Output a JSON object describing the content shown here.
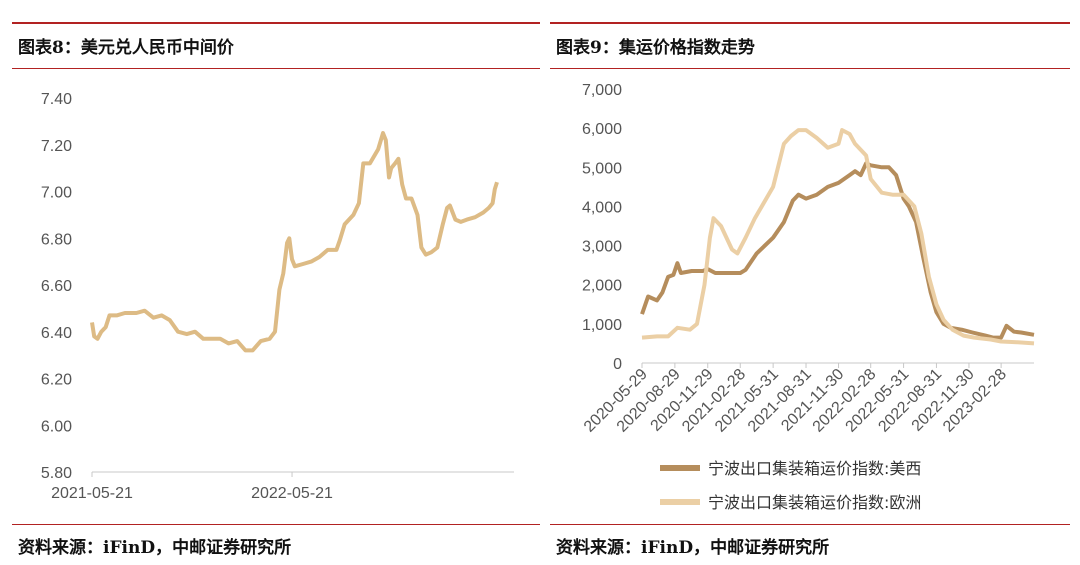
{
  "left": {
    "title": "图表8：美元兑人民币中间价",
    "source": "资料来源：iFinD，中邮证券研究所"
  },
  "right": {
    "title": "图表9：集运价格指数走势",
    "source": "资料来源：iFinD，中邮证券研究所"
  },
  "colors": {
    "usd_cny": "#ddbb85",
    "us_west": "#b58d5c",
    "europe": "#ebcfa5",
    "rule": "#b22222"
  },
  "chart_data": [
    {
      "type": "line",
      "title": "",
      "xlabel": "",
      "ylabel": "",
      "ylim": [
        5.8,
        7.4
      ],
      "yticks": [
        "7.40",
        "7.20",
        "7.00",
        "6.80",
        "6.60",
        "6.40",
        "6.20",
        "6.00",
        "5.80"
      ],
      "xticks": [
        "2021-05-21",
        "2022-05-21"
      ],
      "xlim": [
        "2021-05-21",
        "2023-06-30"
      ],
      "grid": false,
      "series": [
        {
          "values_by_date": [
            [
              "2021-05-21",
              6.44
            ],
            [
              "2021-05-25",
              6.38
            ],
            [
              "2021-05-31",
              6.37
            ],
            [
              "2021-06-07",
              6.4
            ],
            [
              "2021-06-15",
              6.42
            ],
            [
              "2021-06-22",
              6.47
            ],
            [
              "2021-07-05",
              6.47
            ],
            [
              "2021-07-20",
              6.48
            ],
            [
              "2021-08-10",
              6.48
            ],
            [
              "2021-08-25",
              6.49
            ],
            [
              "2021-09-10",
              6.46
            ],
            [
              "2021-09-25",
              6.47
            ],
            [
              "2021-10-10",
              6.45
            ],
            [
              "2021-10-25",
              6.4
            ],
            [
              "2021-11-10",
              6.39
            ],
            [
              "2021-11-25",
              6.4
            ],
            [
              "2021-12-10",
              6.37
            ],
            [
              "2021-12-25",
              6.37
            ],
            [
              "2022-01-10",
              6.37
            ],
            [
              "2022-01-25",
              6.35
            ],
            [
              "2022-02-10",
              6.36
            ],
            [
              "2022-02-25",
              6.32
            ],
            [
              "2022-03-10",
              6.32
            ],
            [
              "2022-03-25",
              6.36
            ],
            [
              "2022-04-10",
              6.37
            ],
            [
              "2022-04-20",
              6.4
            ],
            [
              "2022-04-28",
              6.58
            ],
            [
              "2022-05-05",
              6.65
            ],
            [
              "2022-05-12",
              6.78
            ],
            [
              "2022-05-16",
              6.8
            ],
            [
              "2022-05-21",
              6.71
            ],
            [
              "2022-05-26",
              6.68
            ],
            [
              "2022-06-10",
              6.69
            ],
            [
              "2022-06-25",
              6.7
            ],
            [
              "2022-07-10",
              6.72
            ],
            [
              "2022-07-25",
              6.75
            ],
            [
              "2022-08-10",
              6.75
            ],
            [
              "2022-08-16",
              6.79
            ],
            [
              "2022-08-25",
              6.86
            ],
            [
              "2022-09-10",
              6.9
            ],
            [
              "2022-09-20",
              6.95
            ],
            [
              "2022-09-28",
              7.12
            ],
            [
              "2022-10-10",
              7.12
            ],
            [
              "2022-10-25",
              7.18
            ],
            [
              "2022-11-03",
              7.25
            ],
            [
              "2022-11-08",
              7.22
            ],
            [
              "2022-11-14",
              7.06
            ],
            [
              "2022-11-18",
              7.1
            ],
            [
              "2022-11-25",
              7.12
            ],
            [
              "2022-12-01",
              7.14
            ],
            [
              "2022-12-08",
              7.03
            ],
            [
              "2022-12-15",
              6.97
            ],
            [
              "2022-12-25",
              6.97
            ],
            [
              "2023-01-05",
              6.9
            ],
            [
              "2023-01-12",
              6.76
            ],
            [
              "2023-01-20",
              6.73
            ],
            [
              "2023-01-30",
              6.74
            ],
            [
              "2023-02-10",
              6.76
            ],
            [
              "2023-02-20",
              6.86
            ],
            [
              "2023-02-28",
              6.93
            ],
            [
              "2023-03-05",
              6.94
            ],
            [
              "2023-03-15",
              6.88
            ],
            [
              "2023-03-25",
              6.87
            ],
            [
              "2023-04-05",
              6.88
            ],
            [
              "2023-04-20",
              6.89
            ],
            [
              "2023-05-05",
              6.91
            ],
            [
              "2023-05-15",
              6.93
            ],
            [
              "2023-05-22",
              6.95
            ],
            [
              "2023-05-26",
              7.01
            ],
            [
              "2023-05-30",
              7.04
            ]
          ]
        }
      ]
    },
    {
      "type": "line",
      "title": "",
      "xlabel": "",
      "ylabel": "",
      "ylim": [
        0,
        7000
      ],
      "yticks": [
        "7,000",
        "6,000",
        "5,000",
        "4,000",
        "3,000",
        "2,000",
        "1,000",
        "0"
      ],
      "xticks": [
        "2020-05-29",
        "2020-08-29",
        "2020-11-29",
        "2021-02-28",
        "2021-05-31",
        "2021-08-31",
        "2021-11-30",
        "2022-02-28",
        "2022-05-31",
        "2022-08-31",
        "2022-11-30",
        "2023-02-28"
      ],
      "xlim": [
        "2020-05-29",
        "2023-05-31"
      ],
      "legend": "bottom",
      "grid": false,
      "series": [
        {
          "name": "宁波出口集装箱运价指数:美西",
          "values_by_date": [
            [
              "2020-05-29",
              1250
            ],
            [
              "2020-06-15",
              1700
            ],
            [
              "2020-07-10",
              1600
            ],
            [
              "2020-07-25",
              1800
            ],
            [
              "2020-08-10",
              2200
            ],
            [
              "2020-08-25",
              2250
            ],
            [
              "2020-09-05",
              2550
            ],
            [
              "2020-09-15",
              2300
            ],
            [
              "2020-10-15",
              2350
            ],
            [
              "2020-11-15",
              2350
            ],
            [
              "2020-11-29",
              2400
            ],
            [
              "2020-12-20",
              2300
            ],
            [
              "2021-01-20",
              2300
            ],
            [
              "2021-02-28",
              2300
            ],
            [
              "2021-03-15",
              2380
            ],
            [
              "2021-04-15",
              2800
            ],
            [
              "2021-05-31",
              3200
            ],
            [
              "2021-06-30",
              3600
            ],
            [
              "2021-07-25",
              4150
            ],
            [
              "2021-08-10",
              4300
            ],
            [
              "2021-08-31",
              4200
            ],
            [
              "2021-09-30",
              4300
            ],
            [
              "2021-10-31",
              4500
            ],
            [
              "2021-11-30",
              4600
            ],
            [
              "2021-12-31",
              4800
            ],
            [
              "2022-01-15",
              4900
            ],
            [
              "2022-01-31",
              4800
            ],
            [
              "2022-02-15",
              5100
            ],
            [
              "2022-02-28",
              5050
            ],
            [
              "2022-03-31",
              5000
            ],
            [
              "2022-04-20",
              5000
            ],
            [
              "2022-05-10",
              4800
            ],
            [
              "2022-05-31",
              4200
            ],
            [
              "2022-06-15",
              4000
            ],
            [
              "2022-07-05",
              3600
            ],
            [
              "2022-07-25",
              2700
            ],
            [
              "2022-08-15",
              1800
            ],
            [
              "2022-08-31",
              1300
            ],
            [
              "2022-09-20",
              1000
            ],
            [
              "2022-10-10",
              900
            ],
            [
              "2022-11-10",
              850
            ],
            [
              "2022-12-10",
              780
            ],
            [
              "2023-01-15",
              700
            ],
            [
              "2023-02-05",
              650
            ],
            [
              "2023-02-28",
              650
            ],
            [
              "2023-03-15",
              950
            ],
            [
              "2023-04-05",
              800
            ],
            [
              "2023-04-25",
              780
            ],
            [
              "2023-05-31",
              720
            ]
          ]
        },
        {
          "name": "宁波出口集装箱运价指数:欧洲",
          "values_by_date": [
            [
              "2020-05-29",
              650
            ],
            [
              "2020-07-10",
              680
            ],
            [
              "2020-08-10",
              680
            ],
            [
              "2020-09-05",
              900
            ],
            [
              "2020-10-10",
              850
            ],
            [
              "2020-10-30",
              1000
            ],
            [
              "2020-11-20",
              2000
            ],
            [
              "2020-12-05",
              3200
            ],
            [
              "2020-12-15",
              3700
            ],
            [
              "2021-01-05",
              3500
            ],
            [
              "2021-02-05",
              2900
            ],
            [
              "2021-02-20",
              2800
            ],
            [
              "2021-03-15",
              3200
            ],
            [
              "2021-04-10",
              3700
            ],
            [
              "2021-05-31",
              4500
            ],
            [
              "2021-06-30",
              5600
            ],
            [
              "2021-07-20",
              5800
            ],
            [
              "2021-08-10",
              5950
            ],
            [
              "2021-08-31",
              5950
            ],
            [
              "2021-09-30",
              5750
            ],
            [
              "2021-10-31",
              5500
            ],
            [
              "2021-11-30",
              5600
            ],
            [
              "2021-12-10",
              5950
            ],
            [
              "2021-12-31",
              5850
            ],
            [
              "2022-01-15",
              5600
            ],
            [
              "2022-02-15",
              5300
            ],
            [
              "2022-02-28",
              4700
            ],
            [
              "2022-03-31",
              4350
            ],
            [
              "2022-04-30",
              4300
            ],
            [
              "2022-05-31",
              4300
            ],
            [
              "2022-06-30",
              4000
            ],
            [
              "2022-07-20",
              3300
            ],
            [
              "2022-08-10",
              2200
            ],
            [
              "2022-08-31",
              1500
            ],
            [
              "2022-09-20",
              1100
            ],
            [
              "2022-10-15",
              850
            ],
            [
              "2022-11-15",
              700
            ],
            [
              "2022-12-15",
              650
            ],
            [
              "2023-01-30",
              600
            ],
            [
              "2023-02-28",
              550
            ],
            [
              "2023-04-15",
              530
            ],
            [
              "2023-05-31",
              500
            ]
          ]
        }
      ]
    }
  ]
}
